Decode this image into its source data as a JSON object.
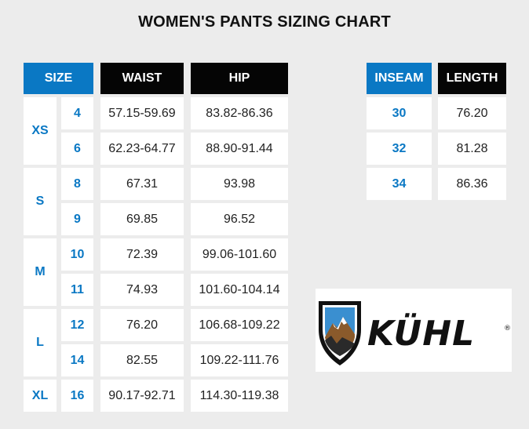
{
  "title": "WOMEN'S PANTS SIZING CHART",
  "main_table": {
    "headers": {
      "size": "SIZE",
      "waist": "WAIST",
      "hip": "HIP"
    },
    "groups": [
      {
        "label": "XS",
        "rows": [
          {
            "num": "4",
            "waist": "57.15-59.69",
            "hip": "83.82-86.36"
          },
          {
            "num": "6",
            "waist": "62.23-64.77",
            "hip": "88.90-91.44"
          }
        ]
      },
      {
        "label": "S",
        "rows": [
          {
            "num": "8",
            "waist": "67.31",
            "hip": "93.98"
          },
          {
            "num": "9",
            "waist": "69.85",
            "hip": "96.52"
          }
        ]
      },
      {
        "label": "M",
        "rows": [
          {
            "num": "10",
            "waist": "72.39",
            "hip": "99.06-101.60"
          },
          {
            "num": "11",
            "waist": "74.93",
            "hip": "101.60-104.14"
          }
        ]
      },
      {
        "label": "L",
        "rows": [
          {
            "num": "12",
            "waist": "76.20",
            "hip": "106.68-109.22"
          },
          {
            "num": "14",
            "waist": "82.55",
            "hip": "109.22-111.76"
          }
        ]
      },
      {
        "label": "XL",
        "rows": [
          {
            "num": "16",
            "waist": "90.17-92.71",
            "hip": "114.30-119.38"
          }
        ]
      }
    ]
  },
  "inseam_table": {
    "headers": {
      "inseam": "INSEAM",
      "length": "LENGTH"
    },
    "rows": [
      {
        "inseam": "30",
        "length": "76.20"
      },
      {
        "inseam": "32",
        "length": "81.28"
      },
      {
        "inseam": "34",
        "length": "86.36"
      }
    ]
  },
  "logo": {
    "brand": "KÜHL",
    "mark": "®"
  },
  "colors": {
    "accent": "#0a78c4",
    "header_dark": "#050505",
    "background": "#ececec"
  }
}
